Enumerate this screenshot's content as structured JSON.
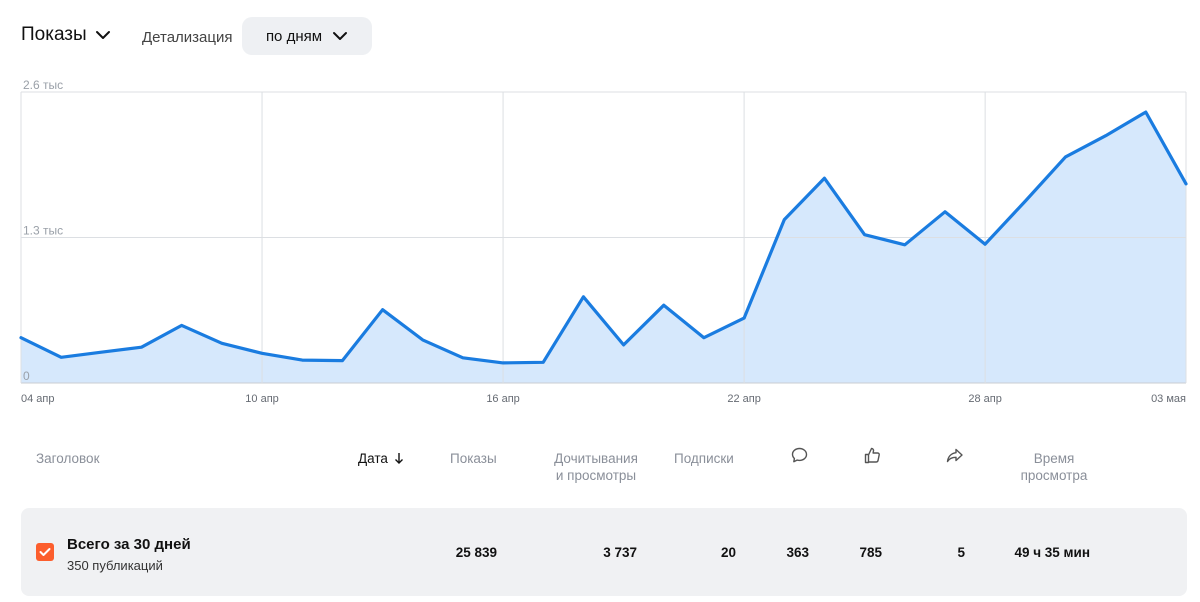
{
  "header": {
    "metric_label": "Показы",
    "detail_label": "Детализация",
    "period_label": "по дням"
  },
  "chart_data": {
    "type": "area",
    "y_tick_labels": [
      "2.6 тыс",
      "1.3 тыс",
      "0"
    ],
    "y_ticks": [
      2600,
      1300,
      0
    ],
    "ylim": [
      0,
      2600
    ],
    "x_tick_labels": [
      "04 апр",
      "10 апр",
      "16 апр",
      "22 апр",
      "28 апр",
      "03 мая"
    ],
    "x": [
      "04 апр",
      "05 апр",
      "06 апр",
      "07 апр",
      "08 апр",
      "09 апр",
      "10 апр",
      "11 апр",
      "12 апр",
      "13 апр",
      "14 апр",
      "15 апр",
      "16 апр",
      "17 апр",
      "18 апр",
      "19 апр",
      "20 апр",
      "21 апр",
      "22 апр",
      "23 апр",
      "24 апр",
      "25 апр",
      "26 апр",
      "27 апр",
      "28 апр",
      "29 апр",
      "30 апр",
      "01 мая",
      "02 мая",
      "03 мая"
    ],
    "series": [
      {
        "values": [
          405,
          230,
          275,
          320,
          515,
          355,
          265,
          205,
          200,
          655,
          385,
          225,
          180,
          185,
          770,
          340,
          695,
          405,
          580,
          1460,
          1830,
          1325,
          1235,
          1530,
          1240,
          1625,
          2020,
          2210,
          2420,
          1780
        ],
        "color": "#1a7ce0",
        "fill": "#d6e8fc"
      }
    ],
    "grid": true
  },
  "table": {
    "headers": {
      "title": "Заголовок",
      "date": "Дата",
      "impressions": "Показы",
      "reads_line1": "Дочитывания",
      "reads_line2": "и просмотры",
      "subscriptions": "Подписки",
      "time_line1": "Время",
      "time_line2": "просмотра"
    },
    "icons": [
      "comment-icon",
      "like-icon",
      "share-icon"
    ],
    "summary": {
      "title": "Всего за 30 дней",
      "subtitle": "350 публикаций",
      "impressions": "25 839",
      "reads": "3 737",
      "subscriptions": "20",
      "comments": "363",
      "likes": "785",
      "shares": "5",
      "watch_time": "49 ч 35 мин"
    }
  },
  "colors": {
    "accent": "#fc5e2d",
    "line": "#1a7ce0",
    "area": "#d6e8fc"
  }
}
